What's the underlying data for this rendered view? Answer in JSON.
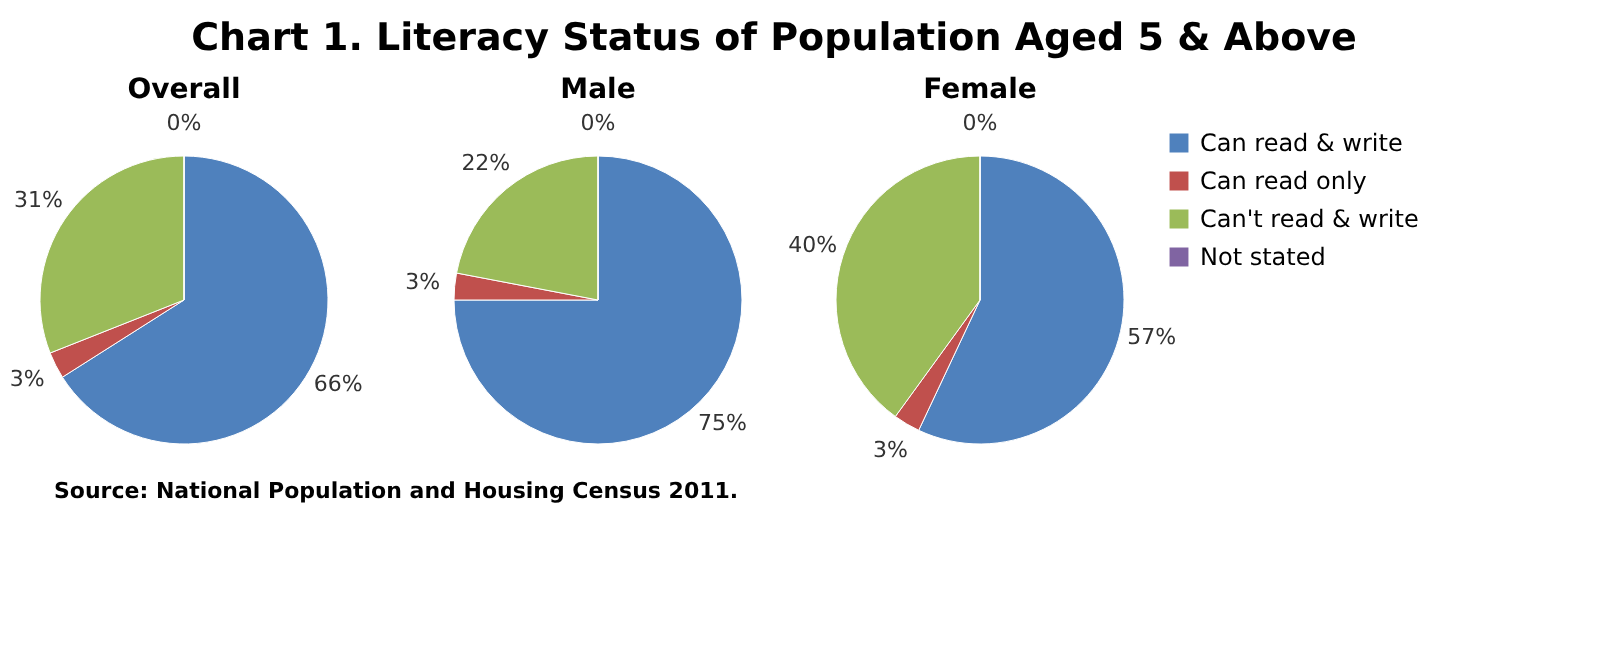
{
  "chart_data": [
    {
      "type": "other",
      "title": "Chart 1. Literacy Status of Population Aged 5 & Above",
      "annotations": [
        "Source: National Population and Housing Census 2011."
      ]
    },
    {
      "type": "pie",
      "title": "Overall",
      "categories": [
        null,
        null,
        null,
        null
      ],
      "values": [
        66,
        3,
        31,
        0
      ],
      "colors": [
        "#4f81bd",
        "#c0504d",
        "#9bbb59",
        "#8064a2"
      ],
      "value_labels": [
        "66%",
        "3%",
        "31%",
        "0%"
      ]
    },
    {
      "type": "pie",
      "title": "Male",
      "categories": [
        null,
        null,
        null,
        null
      ],
      "values": [
        75,
        3,
        22,
        0
      ],
      "colors": [
        "#4f81bd",
        "#c0504d",
        "#9bbb59",
        "#8064a2"
      ],
      "value_labels": [
        "75%",
        "3%",
        "22%",
        "0%"
      ]
    },
    {
      "type": "pie",
      "title": "Female",
      "categories": [
        "Can read & write",
        "Can read only",
        "Can't read & write",
        "Not stated"
      ],
      "values": [
        57,
        3,
        40,
        0
      ],
      "colors": [
        "#4f81bd",
        "#c0504d",
        "#9bbb59",
        "#8064a2"
      ],
      "value_labels": [
        "57%",
        "3%",
        "40%",
        "0%"
      ],
      "legend": "right"
    }
  ]
}
